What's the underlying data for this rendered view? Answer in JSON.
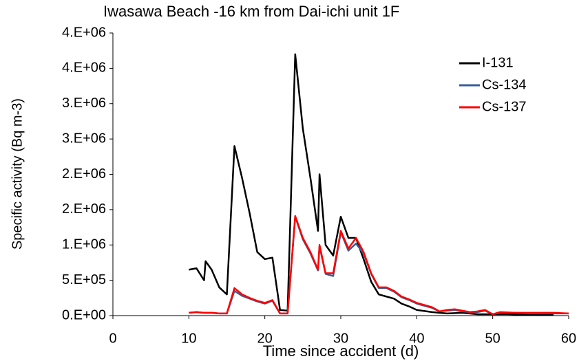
{
  "chart_data": {
    "type": "line",
    "title": "Iwasawa Beach -16 km from Dai-ichi unit 1F",
    "x_label": "Time since accident (d)",
    "y_label": "Specific activity (Bq m-3)",
    "xlim": [
      0,
      60
    ],
    "xticks": [
      0,
      10,
      20,
      30,
      40,
      50,
      60
    ],
    "ylim": [
      0,
      4000000
    ],
    "yticks": [
      {
        "value": 0,
        "label": "0.E+00"
      },
      {
        "value": 500000,
        "label": "5.E+05"
      },
      {
        "value": 1000000,
        "label": "1.E+06"
      },
      {
        "value": 1500000,
        "label": "2.E+06"
      },
      {
        "value": 2000000,
        "label": "2.E+06"
      },
      {
        "value": 2500000,
        "label": "3.E+06"
      },
      {
        "value": 3000000,
        "label": "3.E+06"
      },
      {
        "value": 3500000,
        "label": "4.E+06"
      },
      {
        "value": 4000000,
        "label": "4.E+06"
      }
    ],
    "legend": "upper right",
    "series": [
      {
        "name": "I-131",
        "color": "#000000",
        "x": [
          10,
          11,
          12,
          12.2,
          13,
          14,
          15,
          16,
          17,
          18,
          19,
          20,
          21,
          22,
          23,
          24,
          25,
          26,
          27,
          27.2,
          28,
          29,
          30,
          31,
          32,
          33,
          34,
          35,
          36,
          37,
          38,
          39,
          40,
          42,
          44,
          46,
          48,
          50,
          52,
          55,
          58
        ],
        "values": [
          650000,
          670000,
          500000,
          770000,
          650000,
          400000,
          300000,
          2400000,
          1950000,
          1450000,
          900000,
          800000,
          820000,
          80000,
          70000,
          3700000,
          2650000,
          1950000,
          1200000,
          2000000,
          1000000,
          850000,
          1400000,
          1100000,
          1100000,
          800000,
          480000,
          300000,
          270000,
          240000,
          170000,
          130000,
          80000,
          50000,
          30000,
          40000,
          20000,
          20000,
          20000,
          10000,
          10000
        ]
      },
      {
        "name": "Cs-134",
        "color": "#3a5f9a",
        "x": [
          10,
          11,
          12,
          13,
          14,
          15,
          16,
          17,
          18,
          19,
          20,
          21,
          22,
          23,
          24,
          25,
          26,
          27,
          27.2,
          28,
          29,
          30,
          31,
          32,
          33,
          34,
          35,
          36,
          37,
          38,
          39,
          40,
          41,
          42,
          43,
          44,
          45,
          46,
          47,
          48,
          49,
          50,
          51,
          53,
          55,
          58,
          60
        ],
        "values": [
          40000,
          50000,
          40000,
          40000,
          30000,
          30000,
          350000,
          280000,
          240000,
          200000,
          170000,
          210000,
          30000,
          30000,
          1400000,
          1080000,
          880000,
          640000,
          980000,
          590000,
          560000,
          1180000,
          920000,
          1020000,
          880000,
          590000,
          390000,
          390000,
          340000,
          260000,
          220000,
          170000,
          140000,
          110000,
          60000,
          70000,
          80000,
          60000,
          50000,
          50000,
          70000,
          20000,
          40000,
          40000,
          30000,
          30000,
          30000
        ]
      },
      {
        "name": "Cs-137",
        "color": "#ff0000",
        "x": [
          10,
          11,
          12,
          13,
          14,
          15,
          16,
          17,
          18,
          19,
          20,
          21,
          22,
          23,
          24,
          25,
          26,
          27,
          27.2,
          28,
          29,
          30,
          31,
          32,
          33,
          34,
          35,
          36,
          37,
          38,
          39,
          40,
          41,
          42,
          43,
          44,
          45,
          46,
          47,
          48,
          49,
          50,
          51,
          53,
          55,
          58,
          60
        ],
        "values": [
          40000,
          50000,
          40000,
          40000,
          30000,
          30000,
          390000,
          300000,
          250000,
          210000,
          180000,
          220000,
          30000,
          30000,
          1410000,
          1100000,
          900000,
          650000,
          1000000,
          600000,
          600000,
          1200000,
          950000,
          1100000,
          900000,
          600000,
          400000,
          400000,
          350000,
          270000,
          230000,
          180000,
          150000,
          120000,
          60000,
          80000,
          90000,
          70000,
          50000,
          60000,
          80000,
          20000,
          50000,
          40000,
          40000,
          40000,
          30000
        ]
      }
    ]
  }
}
